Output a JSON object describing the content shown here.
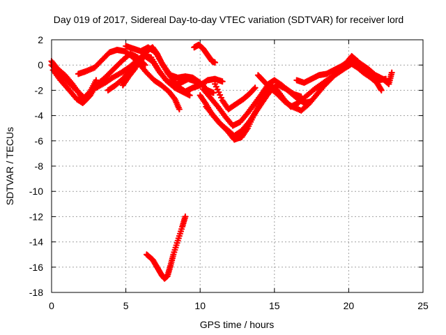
{
  "chart_data": {
    "type": "scatter",
    "title": "Day 019 of 2017, Sidereal Day-to-day VTEC variation (SDTVAR) for receiver lord",
    "xlabel": "GPS time / hours",
    "ylabel": "SDTVAR / TECUs",
    "xlim": [
      0,
      25
    ],
    "ylim": [
      -18,
      2
    ],
    "xticks": [
      0,
      5,
      10,
      15,
      20,
      25
    ],
    "yticks": [
      2,
      0,
      -2,
      -4,
      -6,
      -8,
      -10,
      -12,
      -14,
      -16,
      -18
    ],
    "grid": true,
    "color": "#ff0000",
    "marker": "plus",
    "series": [
      {
        "values": [
          [
            0.0,
            0.3
          ],
          [
            0.4,
            -0.3
          ],
          [
            0.9,
            -0.8
          ],
          [
            1.4,
            -1.5
          ],
          [
            1.9,
            -2.3
          ],
          [
            2.2,
            -2.9
          ],
          [
            2.6,
            -2.4
          ],
          [
            3.0,
            -1.6
          ],
          [
            3.6,
            -1.0
          ],
          [
            4.2,
            -0.3
          ],
          [
            4.8,
            0.4
          ],
          [
            5.3,
            0.9
          ],
          [
            5.8,
            0.6
          ],
          [
            6.3,
            0.0
          ]
        ]
      },
      {
        "values": [
          [
            0.0,
            0.0
          ],
          [
            0.5,
            -0.6
          ],
          [
            1.0,
            -1.2
          ],
          [
            1.6,
            -1.9
          ],
          [
            2.2,
            -2.6
          ],
          [
            2.6,
            -2.1
          ],
          [
            3.0,
            -1.2
          ]
        ]
      },
      {
        "values": [
          [
            0.1,
            -0.4
          ],
          [
            0.6,
            -1.2
          ],
          [
            1.2,
            -2.0
          ],
          [
            1.7,
            -2.7
          ],
          [
            2.1,
            -3.0
          ],
          [
            2.5,
            -2.5
          ]
        ]
      },
      {
        "values": [
          [
            1.8,
            -0.7
          ],
          [
            2.3,
            -0.5
          ],
          [
            2.9,
            -0.2
          ],
          [
            3.4,
            0.4
          ],
          [
            3.9,
            1.0
          ],
          [
            4.4,
            1.2
          ],
          [
            4.9,
            1.1
          ],
          [
            5.4,
            0.7
          ],
          [
            5.9,
            0.1
          ],
          [
            6.4,
            -0.6
          ],
          [
            6.9,
            -1.2
          ],
          [
            7.4,
            -1.6
          ],
          [
            7.9,
            -2.1
          ],
          [
            8.3,
            -2.7
          ],
          [
            8.6,
            -3.5
          ]
        ]
      },
      {
        "values": [
          [
            3.0,
            -1.8
          ],
          [
            3.6,
            -1.4
          ],
          [
            4.1,
            -1.0
          ],
          [
            4.7,
            -0.6
          ],
          [
            5.2,
            -0.2
          ],
          [
            5.7,
            0.3
          ],
          [
            6.2,
            0.8
          ],
          [
            6.7,
            0.6
          ],
          [
            7.2,
            -0.4
          ],
          [
            7.7,
            -1.2
          ],
          [
            8.2,
            -1.6
          ],
          [
            8.7,
            -1.4
          ],
          [
            9.2,
            -1.1
          ],
          [
            9.7,
            -1.3
          ],
          [
            10.2,
            -1.6
          ]
        ]
      },
      {
        "values": [
          [
            3.8,
            -2.0
          ],
          [
            4.3,
            -1.6
          ],
          [
            4.8,
            -1.1
          ],
          [
            5.3,
            -0.4
          ],
          [
            5.8,
            0.2
          ],
          [
            6.3,
            0.7
          ],
          [
            6.8,
            0.3
          ],
          [
            7.3,
            -0.6
          ],
          [
            7.8,
            -1.3
          ],
          [
            8.3,
            -1.8
          ],
          [
            8.8,
            -2.1
          ],
          [
            9.3,
            -2.4
          ]
        ]
      },
      {
        "values": [
          [
            4.8,
            -1.6
          ],
          [
            5.2,
            -0.9
          ],
          [
            5.6,
            -0.3
          ],
          [
            6.0,
            0.5
          ],
          [
            6.4,
            1.1
          ],
          [
            6.8,
            1.4
          ],
          [
            7.1,
            0.9
          ],
          [
            7.4,
            0.2
          ],
          [
            7.8,
            -0.6
          ],
          [
            8.2,
            -1.2
          ],
          [
            8.6,
            -1.8
          ],
          [
            9.0,
            -2.1
          ],
          [
            9.5,
            -1.8
          ],
          [
            10.0,
            -1.6
          ],
          [
            10.5,
            -1.2
          ],
          [
            11.0,
            -1.1
          ],
          [
            11.5,
            -1.3
          ]
        ]
      },
      {
        "values": [
          [
            5.0,
            1.5
          ],
          [
            5.5,
            1.3
          ],
          [
            6.0,
            1.1
          ],
          [
            6.5,
            1.4
          ],
          [
            7.0,
            1.0
          ],
          [
            7.5,
            0.0
          ],
          [
            8.0,
            -0.8
          ],
          [
            8.5,
            -1.0
          ],
          [
            9.0,
            -0.9
          ],
          [
            9.5,
            -1.0
          ],
          [
            10.0,
            -1.4
          ],
          [
            10.5,
            -2.0
          ],
          [
            10.9,
            -2.2
          ]
        ]
      },
      {
        "values": [
          [
            9.6,
            1.4
          ],
          [
            9.9,
            1.6
          ],
          [
            10.2,
            1.3
          ],
          [
            10.5,
            0.8
          ],
          [
            10.8,
            0.3
          ],
          [
            11.0,
            0.2
          ]
        ]
      },
      {
        "values": [
          [
            10.0,
            -2.4
          ],
          [
            10.4,
            -3.1
          ],
          [
            10.8,
            -3.9
          ],
          [
            11.3,
            -4.6
          ],
          [
            11.8,
            -5.1
          ],
          [
            12.3,
            -5.6
          ],
          [
            12.8,
            -5.2
          ],
          [
            13.3,
            -4.5
          ],
          [
            13.7,
            -3.8
          ],
          [
            14.1,
            -3.1
          ],
          [
            14.5,
            -2.4
          ],
          [
            14.9,
            -1.8
          ],
          [
            15.3,
            -1.6
          ],
          [
            15.8,
            -1.9
          ],
          [
            16.3,
            -2.3
          ],
          [
            16.8,
            -2.5
          ]
        ]
      },
      {
        "values": [
          [
            10.2,
            -1.9
          ],
          [
            10.7,
            -2.6
          ],
          [
            11.2,
            -3.3
          ],
          [
            11.7,
            -4.1
          ],
          [
            12.2,
            -4.8
          ],
          [
            12.7,
            -4.5
          ],
          [
            13.2,
            -3.8
          ],
          [
            13.7,
            -3.0
          ],
          [
            14.2,
            -2.2
          ],
          [
            14.6,
            -1.5
          ],
          [
            15.0,
            -1.2
          ],
          [
            15.5,
            -1.6
          ],
          [
            16.0,
            -2.1
          ],
          [
            16.5,
            -2.6
          ],
          [
            17.0,
            -3.0
          ],
          [
            17.4,
            -2.9
          ]
        ]
      },
      {
        "values": [
          [
            10.4,
            -3.3
          ],
          [
            10.9,
            -4.0
          ],
          [
            11.4,
            -4.7
          ],
          [
            11.9,
            -5.3
          ],
          [
            12.3,
            -5.9
          ],
          [
            12.8,
            -5.7
          ],
          [
            13.2,
            -5.0
          ],
          [
            13.6,
            -4.0
          ],
          [
            14.0,
            -3.1
          ],
          [
            14.3,
            -2.4
          ],
          [
            14.7,
            -1.6
          ],
          [
            15.2,
            -2.0
          ],
          [
            15.7,
            -2.8
          ],
          [
            16.1,
            -3.3
          ],
          [
            16.6,
            -3.0
          ],
          [
            17.1,
            -2.5
          ],
          [
            17.7,
            -1.9
          ],
          [
            18.3,
            -1.4
          ],
          [
            18.8,
            -1.0
          ],
          [
            19.3,
            -0.6
          ],
          [
            19.8,
            -0.2
          ],
          [
            20.2,
            0.1
          ],
          [
            20.6,
            -0.2
          ],
          [
            21.0,
            -0.6
          ],
          [
            21.5,
            -1.0
          ],
          [
            21.9,
            -1.4
          ],
          [
            22.2,
            -2.0
          ]
        ]
      },
      {
        "values": [
          [
            11.0,
            -1.5
          ],
          [
            11.5,
            -2.8
          ],
          [
            11.9,
            -3.5
          ],
          [
            12.4,
            -3.1
          ],
          [
            12.9,
            -2.7
          ],
          [
            13.3,
            -2.3
          ],
          [
            13.7,
            -1.8
          ]
        ]
      },
      {
        "values": [
          [
            13.9,
            -0.8
          ],
          [
            14.3,
            -1.3
          ],
          [
            14.7,
            -1.8
          ],
          [
            15.2,
            -2.3
          ],
          [
            15.7,
            -2.9
          ],
          [
            16.2,
            -3.3
          ],
          [
            16.8,
            -3.6
          ],
          [
            17.3,
            -3.1
          ],
          [
            17.8,
            -2.4
          ],
          [
            18.3,
            -1.7
          ],
          [
            18.8,
            -1.1
          ],
          [
            19.3,
            -0.5
          ],
          [
            19.8,
            0.1
          ],
          [
            20.2,
            0.7
          ],
          [
            20.6,
            0.3
          ],
          [
            21.0,
            -0.3
          ],
          [
            21.5,
            -0.9
          ],
          [
            22.0,
            -1.2
          ],
          [
            22.5,
            -1.1
          ]
        ]
      },
      {
        "values": [
          [
            16.5,
            -1.2
          ],
          [
            17.0,
            -1.4
          ],
          [
            17.5,
            -1.1
          ],
          [
            18.0,
            -0.8
          ],
          [
            18.5,
            -0.7
          ],
          [
            19.0,
            -0.4
          ],
          [
            19.5,
            -0.1
          ],
          [
            20.0,
            0.3
          ],
          [
            20.4,
            0.4
          ],
          [
            20.8,
            0.1
          ],
          [
            21.3,
            -0.3
          ],
          [
            21.8,
            -0.8
          ],
          [
            22.3,
            -1.1
          ],
          [
            22.7,
            -1.5
          ],
          [
            22.9,
            -0.6
          ]
        ]
      },
      {
        "values": [
          [
            6.4,
            -15.0
          ],
          [
            6.8,
            -15.4
          ],
          [
            7.1,
            -16.0
          ],
          [
            7.4,
            -16.6
          ],
          [
            7.6,
            -16.9
          ],
          [
            7.8,
            -16.7
          ],
          [
            8.0,
            -15.9
          ],
          [
            8.2,
            -15.0
          ],
          [
            8.5,
            -13.9
          ],
          [
            8.8,
            -12.8
          ],
          [
            9.0,
            -12.0
          ]
        ]
      }
    ]
  }
}
